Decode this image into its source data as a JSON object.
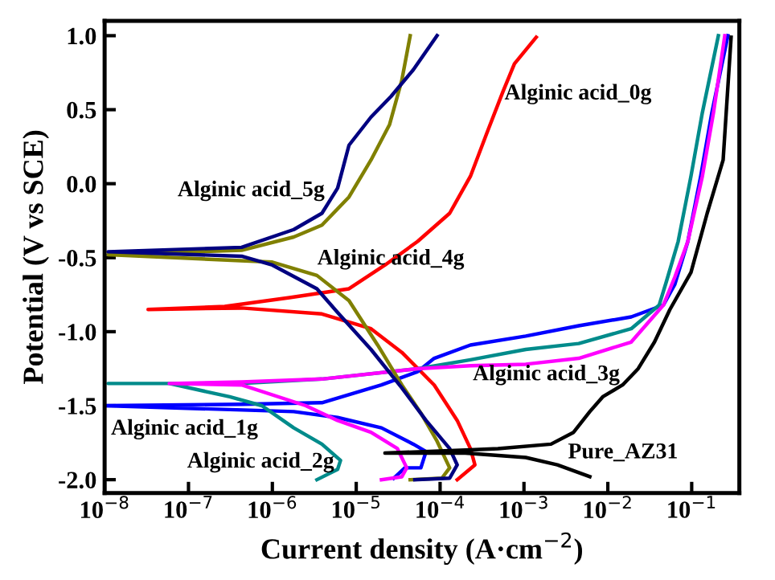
{
  "chart_data": {
    "type": "line",
    "xlabel": "Current density (A·cm$^{−2}$)",
    "ylabel": "Potential (V vs SCE)",
    "log": "x",
    "grid": false,
    "legend": false,
    "marker": "none",
    "line_style": "solid",
    "xlim": [
      1e-08,
      0.37
    ],
    "ylim": [
      -2.09,
      1.1
    ],
    "xticks": [
      {
        "value": 1e-08,
        "label": "10$^{−8}$"
      },
      {
        "value": 1e-07,
        "label": "10$^{−7}$"
      },
      {
        "value": 1e-06,
        "label": "10$^{−6}$"
      },
      {
        "value": 1e-05,
        "label": "10$^{−5}$"
      },
      {
        "value": 0.0001,
        "label": "10$^{−4}$"
      },
      {
        "value": 0.001,
        "label": "10$^{−3}$"
      },
      {
        "value": 0.01,
        "label": "10$^{−2}$"
      },
      {
        "value": 0.1,
        "label": "10$^{−1}$"
      }
    ],
    "yticks": [
      {
        "value": -2.0,
        "label": "-2.0"
      },
      {
        "value": -1.5,
        "label": "-1.5"
      },
      {
        "value": -1.0,
        "label": "-1.0"
      },
      {
        "value": -0.5,
        "label": "-0.5"
      },
      {
        "value": 0.0,
        "label": "0.0"
      },
      {
        "value": 0.5,
        "label": "0.5"
      },
      {
        "value": 1.0,
        "label": "1.0"
      }
    ],
    "series": [
      {
        "name": "Alginic acid_0g",
        "color": "#ff0000",
        "x": [
          0.00016,
          0.00026,
          0.00023,
          0.00016,
          8.5e-05,
          3.5e-05,
          1.5e-05,
          3.9e-06,
          4.3e-07,
          3.3e-08,
          2.7e-07,
          1.6e-06,
          8.2e-06,
          2.2e-05,
          5.4e-05,
          0.00013,
          0.00023,
          0.00036,
          0.00056,
          0.00077,
          0.0014
        ],
        "values": [
          -2.0,
          -1.9,
          -1.79,
          -1.6,
          -1.36,
          -1.14,
          -0.98,
          -0.88,
          -0.84,
          -0.85,
          -0.83,
          -0.77,
          -0.71,
          -0.55,
          -0.39,
          -0.2,
          0.05,
          0.34,
          0.62,
          0.81,
          0.99
        ]
      },
      {
        "name": "Alginic acid_1g",
        "color": "#0000ff",
        "x": [
          2.8e-05,
          3.8e-05,
          5.9e-05,
          6.8e-05,
          4.8e-05,
          2e-05,
          6e-06,
          1.8e-06,
          1e-08,
          4.3e-07,
          3.9e-06,
          2e-05,
          5.4e-05,
          8.5e-05,
          0.00023,
          0.00105,
          0.0045,
          0.019,
          0.046,
          0.063,
          0.09,
          0.128,
          0.174,
          0.27
        ],
        "values": [
          -1.99,
          -1.92,
          -1.92,
          -1.81,
          -1.76,
          -1.65,
          -1.58,
          -1.54,
          -1.5,
          -1.49,
          -1.48,
          -1.36,
          -1.27,
          -1.18,
          -1.09,
          -1.03,
          -0.96,
          -0.9,
          -0.82,
          -0.68,
          -0.39,
          0.05,
          0.48,
          1.0
        ]
      },
      {
        "name": "Alginic acid_2g",
        "color": "#008b8b",
        "x": [
          3.4e-06,
          6e-06,
          6.5e-06,
          3.9e-06,
          1.8e-06,
          7.5e-07,
          3.1e-07,
          5.9e-08,
          1.1e-08,
          4.3e-07,
          3.9e-06,
          5.4e-05,
          0.00023,
          0.00105,
          0.0045,
          0.019,
          0.041,
          0.05,
          0.069,
          0.098,
          0.134,
          0.208
        ],
        "values": [
          -2.0,
          -1.93,
          -1.87,
          -1.76,
          -1.65,
          -1.5,
          -1.44,
          -1.35,
          -1.35,
          -1.35,
          -1.32,
          -1.25,
          -1.19,
          -1.12,
          -1.08,
          -0.98,
          -0.82,
          -0.66,
          -0.39,
          0.05,
          0.48,
          1.0
        ]
      },
      {
        "name": "Alginic acid_3g",
        "color": "#ff00ff",
        "x": [
          2e-05,
          3.5e-05,
          4e-05,
          3.1e-05,
          1.5e-05,
          6e-06,
          2.5e-06,
          4.3e-07,
          5.9e-08,
          4.3e-07,
          3.9e-06,
          5.4e-05,
          0.00023,
          0.00105,
          0.0045,
          0.019,
          0.046,
          0.063,
          0.09,
          0.134,
          0.182,
          0.248
        ],
        "values": [
          -2.0,
          -1.98,
          -1.92,
          -1.79,
          -1.68,
          -1.6,
          -1.5,
          -1.36,
          -1.35,
          -1.34,
          -1.32,
          -1.25,
          -1.23,
          -1.22,
          -1.18,
          -1.07,
          -0.82,
          -0.63,
          -0.39,
          0.05,
          0.48,
          1.0
        ]
      },
      {
        "name": "Alginic acid_4g",
        "color": "#808000",
        "x": [
          4.4e-05,
          0.000105,
          0.00013,
          9.2e-05,
          5.9e-05,
          3.5e-05,
          1.8e-05,
          8.2e-06,
          3.4e-06,
          1e-06,
          1.1e-08,
          4.3e-07,
          1.8e-06,
          3.9e-06,
          8.2e-06,
          1.5e-05,
          2.5e-05,
          3.5e-05,
          4.4e-05
        ],
        "values": [
          -2.0,
          -1.99,
          -1.92,
          -1.74,
          -1.55,
          -1.36,
          -1.09,
          -0.79,
          -0.62,
          -0.53,
          -0.48,
          -0.45,
          -0.36,
          -0.28,
          -0.09,
          0.16,
          0.4,
          0.7,
          1.0
        ]
      },
      {
        "name": "Alginic acid_5g",
        "color": "#000080",
        "x": [
          5e-05,
          0.00013,
          0.00016,
          0.00013,
          6.8e-05,
          3.5e-05,
          1.5e-05,
          6e-06,
          3.4e-06,
          1e-06,
          4.3e-07,
          1.1e-08,
          4.3e-07,
          1.8e-06,
          3.9e-06,
          6e-06,
          8.2e-06,
          1.5e-05,
          2.6e-05,
          4.8e-05,
          9.2e-05
        ],
        "values": [
          -2.0,
          -1.99,
          -1.9,
          -1.79,
          -1.6,
          -1.38,
          -1.12,
          -0.87,
          -0.71,
          -0.55,
          -0.49,
          -0.46,
          -0.43,
          -0.31,
          -0.2,
          -0.03,
          0.26,
          0.45,
          0.59,
          0.77,
          1.0
        ]
      },
      {
        "name": "Pure_AZ31",
        "color": "#000000",
        "x": [
          0.0061,
          0.0025,
          0.00105,
          0.0002,
          2.2e-05,
          0.0002,
          0.00049,
          0.0021,
          0.0039,
          0.0061,
          0.0087,
          0.015,
          0.023,
          0.036,
          0.055,
          0.098,
          0.153,
          0.237,
          0.295
        ],
        "values": [
          -1.98,
          -1.9,
          -1.85,
          -1.82,
          -1.82,
          -1.8,
          -1.79,
          -1.76,
          -1.68,
          -1.54,
          -1.44,
          -1.36,
          -1.25,
          -1.07,
          -0.85,
          -0.6,
          -0.2,
          0.16,
          0.99
        ]
      }
    ]
  }
}
